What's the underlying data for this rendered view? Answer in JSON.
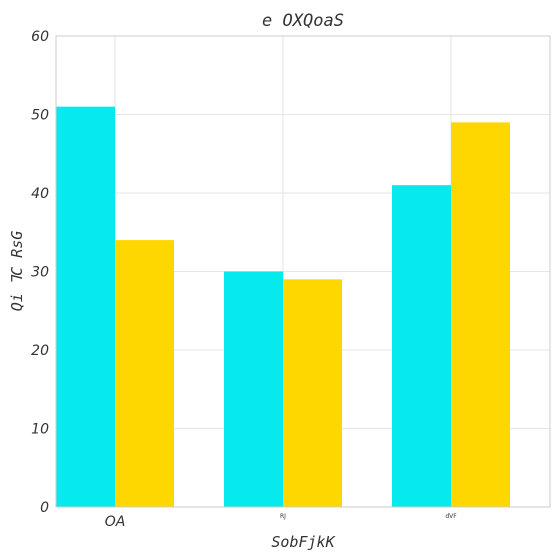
{
  "chart_data": {
    "type": "bar",
    "title": "e OXQoaS",
    "xlabel": "SobFjkK",
    "ylabel": "Qi ꞀC RsG",
    "categories": [
      "OA",
      "RJ",
      "dVF"
    ],
    "series": [
      {
        "color": "#06EAEE",
        "values": [
          51,
          30,
          41
        ]
      },
      {
        "color": "#FFD700",
        "values": [
          34,
          29,
          49
        ]
      }
    ],
    "ylim": [
      0,
      60
    ],
    "yticks": [
      0,
      10,
      20,
      30,
      40,
      50,
      60
    ],
    "grid": true,
    "legend": "none"
  }
}
